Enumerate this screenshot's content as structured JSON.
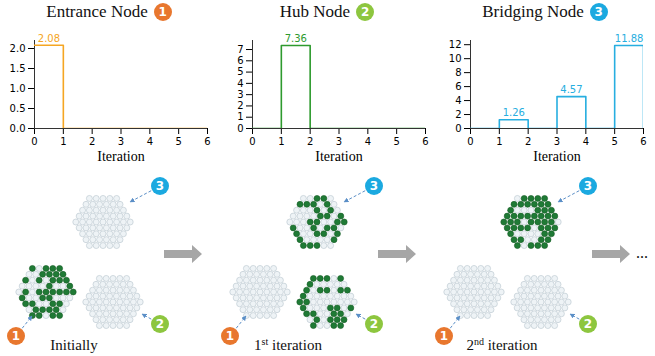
{
  "chart_data": [
    {
      "type": "line",
      "title": "Entrance Node",
      "xlabel": "Iteration",
      "x": [
        0,
        1,
        2,
        3,
        4,
        5,
        6
      ],
      "values": [
        2.08,
        0,
        0,
        0,
        0,
        0,
        0
      ],
      "value_labels": [
        "2.08",
        null,
        null,
        null,
        null,
        null,
        null
      ],
      "data_labels": true,
      "line_style": "step",
      "color": "#f5a623",
      "xlim": [
        0,
        6
      ],
      "ylim": [
        0,
        2.2
      ],
      "xticks": [
        0,
        1,
        2,
        3,
        4,
        5,
        6
      ],
      "yticks": [
        {
          "value": 0,
          "label": "0.0"
        },
        {
          "value": 0.5,
          "label": "0.5"
        },
        {
          "value": 1,
          "label": "1.0"
        },
        {
          "value": 1.5,
          "label": "1.5"
        },
        {
          "value": 2,
          "label": "2.0"
        }
      ]
    },
    {
      "type": "line",
      "title": "Hub Node",
      "xlabel": "Iteration",
      "x": [
        0,
        1,
        2,
        3,
        4,
        5,
        6
      ],
      "values": [
        0,
        7.36,
        0,
        0,
        0,
        0,
        0
      ],
      "value_labels": [
        null,
        "7.36",
        null,
        null,
        null,
        null,
        null
      ],
      "data_labels": true,
      "line_style": "step",
      "color": "#2e9a2e",
      "xlim": [
        0,
        6
      ],
      "ylim": [
        0,
        7.8
      ],
      "xticks": [
        0,
        1,
        2,
        3,
        4,
        5,
        6
      ],
      "yticks": [
        0,
        1,
        2,
        3,
        4,
        5,
        6,
        7
      ]
    },
    {
      "type": "line",
      "title": "Bridging Node",
      "xlabel": "Iteration",
      "x": [
        0,
        1,
        2,
        3,
        4,
        5,
        6
      ],
      "values": [
        0,
        1.26,
        0,
        4.57,
        0,
        11.88,
        0
      ],
      "value_labels": [
        null,
        "1.26",
        null,
        "4.57",
        null,
        "11.88",
        null
      ],
      "data_labels": true,
      "line_style": "step",
      "color": "#27aee0",
      "xlim": [
        0,
        6
      ],
      "ylim": [
        0,
        12.6
      ],
      "xticks": [
        0,
        1,
        2,
        3,
        4,
        5,
        6
      ],
      "yticks": [
        0,
        2,
        4,
        6,
        8,
        10,
        12
      ]
    }
  ],
  "diagram": {
    "nodes": [
      {
        "label": "1",
        "color": "#e8772e"
      },
      {
        "label": "2",
        "color": "#8dc63f"
      },
      {
        "label": "3",
        "color": "#1ba9e0"
      }
    ],
    "stages": [
      "Initially",
      "1st iteration",
      "2nd iteration"
    ],
    "continuation": "..."
  }
}
